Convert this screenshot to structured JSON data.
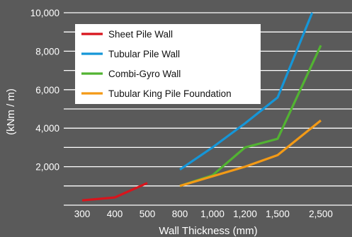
{
  "chart_data": {
    "type": "line",
    "xlabel": "Wall Thickness (mm)",
    "ylabel": "(kNm / m)",
    "categories": [
      "300",
      "400",
      "500",
      "800",
      "1,000",
      "1,200",
      "1,500",
      "2,500"
    ],
    "y_ticks": [
      "2,000",
      "4,000",
      "6,000",
      "8,000",
      "10,000"
    ],
    "ylim": [
      0,
      10000
    ],
    "grid": true,
    "legend_position": "top-left",
    "series": [
      {
        "name": "Sheet Pile Wall",
        "color": "#d8141c",
        "points": [
          [
            300,
            250
          ],
          [
            400,
            400
          ],
          [
            500,
            1150
          ]
        ]
      },
      {
        "name": "Tubular Pile Wall",
        "color": "#1596d8",
        "points": [
          [
            800,
            1850
          ],
          [
            1000,
            3000
          ],
          [
            1200,
            4250
          ],
          [
            1500,
            5600
          ],
          [
            2300,
            10000
          ]
        ]
      },
      {
        "name": "Combi-Gyro Wall",
        "color": "#52b332",
        "points": [
          [
            800,
            1000
          ],
          [
            1000,
            1550
          ],
          [
            1200,
            3000
          ],
          [
            1500,
            3450
          ],
          [
            2500,
            8300
          ]
        ]
      },
      {
        "name": "Tubular King Pile Foundation",
        "color": "#f39a16",
        "points": [
          [
            800,
            1000
          ],
          [
            1000,
            1500
          ],
          [
            1200,
            2000
          ],
          [
            1500,
            2600
          ],
          [
            2500,
            4400
          ]
        ]
      }
    ]
  }
}
